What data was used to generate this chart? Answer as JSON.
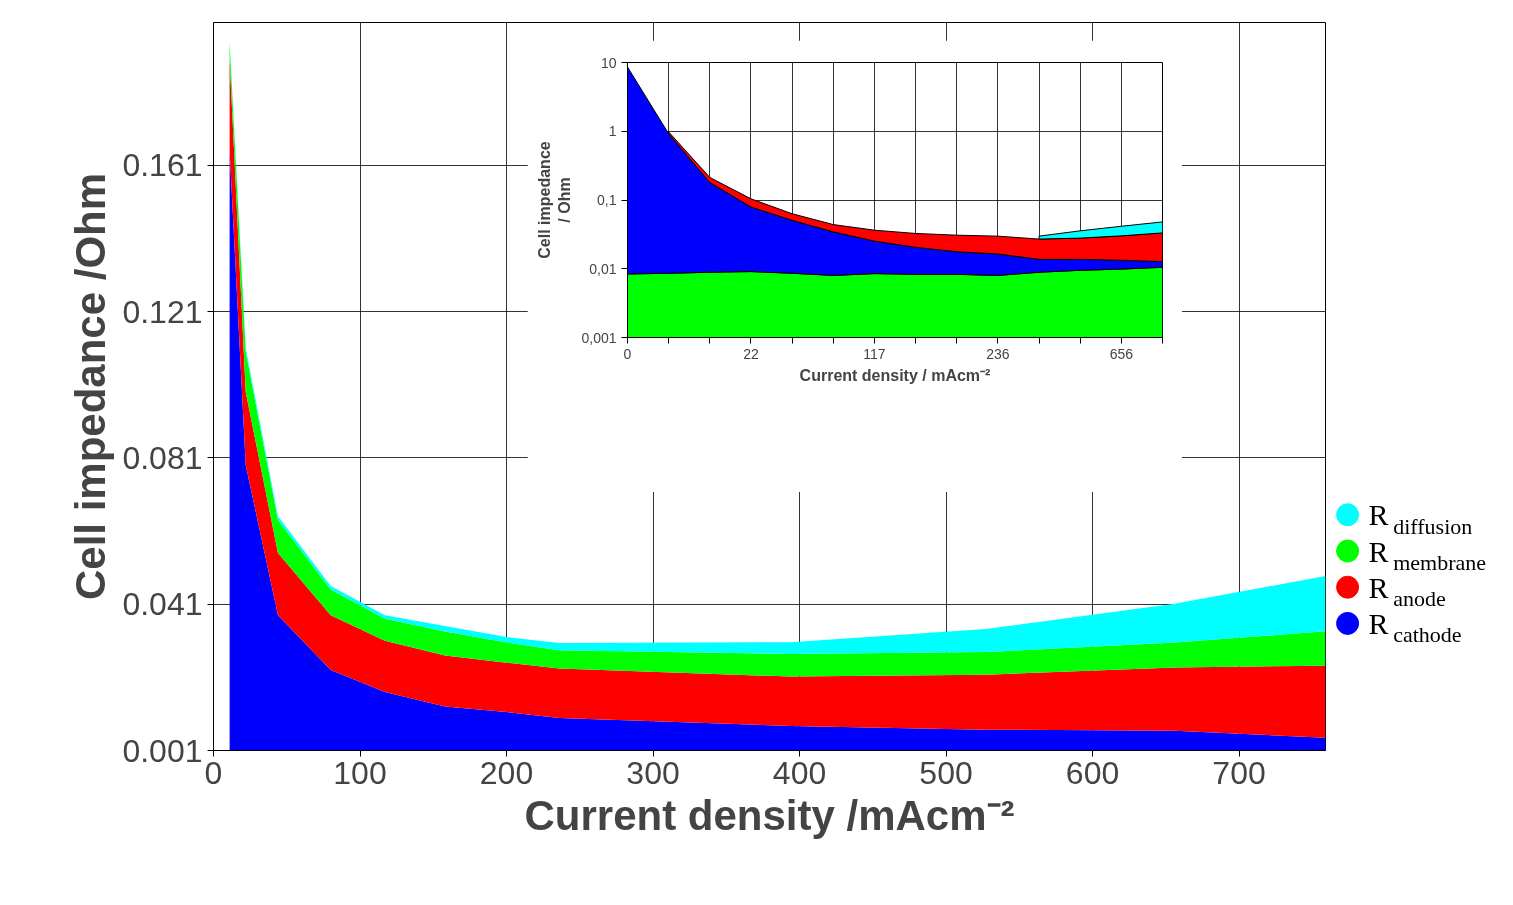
{
  "chart_data": [
    {
      "type": "area",
      "stacked": true,
      "xlabel": "Current density /mAcm⁻²",
      "ylabel": "Cell impedance /Ohm",
      "x": [
        11,
        22,
        44,
        80,
        117,
        158,
        200,
        236,
        394,
        527,
        656,
        759
      ],
      "xlim": [
        0,
        759
      ],
      "ylim": [
        0.001,
        0.2
      ],
      "xticks": [
        0,
        100,
        200,
        300,
        400,
        500,
        600,
        700
      ],
      "yticks": [
        0.001,
        0.041,
        0.081,
        0.121,
        0.161
      ],
      "grid": true,
      "legend": "right",
      "series": [
        {
          "name": "R$_{cathode}$",
          "color": "#0000ff",
          "values": [
            0.165,
            0.079,
            0.038,
            0.023,
            0.017,
            0.013,
            0.0115,
            0.0099,
            0.0077,
            0.0067,
            0.0064,
            0.0045
          ]
        },
        {
          "name": "R$_{anode}$",
          "color": "#ff0000",
          "values": [
            0.025,
            0.02,
            0.017,
            0.015,
            0.014,
            0.014,
            0.0135,
            0.0135,
            0.0135,
            0.015,
            0.0173,
            0.0197
          ]
        },
        {
          "name": "R$_{membrane}$",
          "color": "#00ff00",
          "values": [
            0.004,
            0.011,
            0.009,
            0.007,
            0.006,
            0.0065,
            0.0055,
            0.005,
            0.0062,
            0.0062,
            0.0068,
            0.0094
          ]
        },
        {
          "name": "R$_{diffusion}$",
          "color": "#00ffff",
          "values": [
            0.001,
            0.001,
            0.001,
            0.001,
            0.001,
            0.0015,
            0.0015,
            0.002,
            0.0032,
            0.0063,
            0.0106,
            0.0151
          ]
        }
      ]
    },
    {
      "type": "area",
      "stacked": true,
      "log": "y",
      "xlabel": "Current density / mAcm⁻²",
      "ylabel": "Cell impedance\n/ Ohm",
      "categories": [
        "0",
        null,
        null,
        "22",
        null,
        null,
        "117",
        null,
        null,
        "236",
        null,
        null,
        "656",
        null
      ],
      "ylim": [
        0.001,
        10
      ],
      "yticks": [
        {
          "value": 0.001,
          "label": "0,001"
        },
        {
          "value": 0.01,
          "label": "0,01"
        },
        {
          "value": 0.1,
          "label": "0,1"
        },
        1,
        10
      ],
      "grid": true,
      "series": [
        {
          "color": "#00ff00",
          "values": [
            0.0084,
            0.0086,
            0.0089,
            0.0091,
            0.0086,
            0.008,
            0.0085,
            0.0083,
            0.0083,
            0.008,
            0.0089,
            0.0095,
            0.0099,
            0.0105
          ]
        },
        {
          "color": "#0000ff",
          "values": [
            8.6,
            0.91,
            0.171,
            0.07,
            0.042,
            0.0264,
            0.0167,
            0.0122,
            0.0094,
            0.0084,
            0.0048,
            0.0042,
            0.0034,
            0.0022
          ]
        },
        {
          "color": "#ff0000",
          "values": [
            null,
            0.06,
            0.033,
            0.025,
            0.0125,
            0.0095,
            0.0112,
            0.0121,
            0.0131,
            0.0134,
            0.0133,
            0.0142,
            0.0168,
            0.0205
          ]
        },
        {
          "color": "#00ffff",
          "values": [
            null,
            null,
            null,
            null,
            null,
            null,
            null,
            null,
            null,
            null,
            0.0028,
            0.0077,
            0.0114,
            0.0148
          ]
        }
      ]
    }
  ]
}
